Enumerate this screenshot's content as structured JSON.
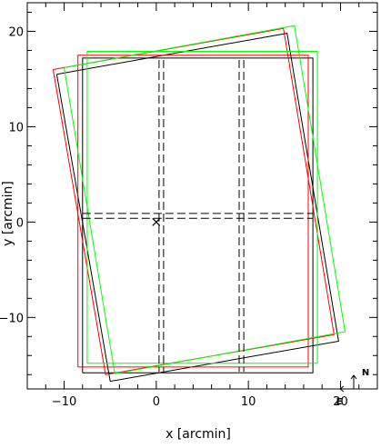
{
  "chart_data": {
    "type": "line",
    "title": "",
    "xlabel": "x [arcmin]",
    "ylabel": "y [arcmin]",
    "xlim": [
      -14,
      24
    ],
    "ylim": [
      -17.5,
      23
    ],
    "xticks": [
      -10,
      0,
      10,
      20
    ],
    "yticks": [
      -10,
      0,
      10,
      20
    ],
    "xtick_labels": [
      "−10",
      "0",
      "10",
      "20"
    ],
    "ytick_labels": [
      "−10",
      "0",
      "10",
      "20"
    ],
    "grid": false,
    "legend": "none",
    "series": [
      {
        "color": "#000000",
        "dash": false,
        "polygons": [
          [
            [
              -8,
              -15.8
            ],
            [
              17,
              -15.8
            ],
            [
              17,
              17.2
            ],
            [
              -8,
              17.2
            ],
            [
              -8,
              -15.8
            ]
          ],
          [
            [
              -10.8,
              15.5
            ],
            [
              14.2,
              19.8
            ],
            [
              19.8,
              -12.5
            ],
            [
              -5,
              -16.7
            ],
            [
              -10.8,
              15.5
            ]
          ]
        ]
      },
      {
        "color": "#ff0000",
        "dash": false,
        "polygons": [
          [
            [
              -8.5,
              -15.2
            ],
            [
              16.5,
              -15.2
            ],
            [
              16.5,
              17.5
            ],
            [
              -8.5,
              17.5
            ],
            [
              -8.5,
              -15.2
            ]
          ],
          [
            [
              -11.2,
              16
            ],
            [
              13.8,
              20.3
            ],
            [
              19.3,
              -11.8
            ],
            [
              -5.5,
              -16
            ],
            [
              -11.2,
              16
            ]
          ]
        ]
      },
      {
        "color": "#00ff00",
        "dash": false,
        "polygons": [
          [
            [
              -7.5,
              -14.8
            ],
            [
              17.5,
              -14.8
            ],
            [
              17.5,
              17.9
            ],
            [
              -7.5,
              17.9
            ],
            [
              -7.5,
              -14.8
            ]
          ],
          [
            [
              -10,
              16.2
            ],
            [
              15,
              20.6
            ],
            [
              20.5,
              -11.5
            ],
            [
              -4.5,
              -15.9
            ],
            [
              -10,
              16.2
            ]
          ]
        ]
      },
      {
        "color": "#000000",
        "dash": true,
        "polylines": [
          [
            [
              0.3,
              17
            ],
            [
              0.3,
              -15.7
            ]
          ],
          [
            [
              0.8,
              17
            ],
            [
              0.8,
              -15.7
            ]
          ],
          [
            [
              9,
              17
            ],
            [
              9,
              -15.7
            ]
          ],
          [
            [
              9.5,
              17
            ],
            [
              9.5,
              -15.7
            ]
          ],
          [
            [
              -8,
              0.9
            ],
            [
              17,
              0.9
            ]
          ],
          [
            [
              -8,
              0.4
            ],
            [
              17,
              0.4
            ]
          ]
        ]
      }
    ],
    "marker": {
      "symbol": "×",
      "x": 0,
      "y": 0
    },
    "compass": {
      "north_label": "N",
      "east_label": "E"
    }
  }
}
